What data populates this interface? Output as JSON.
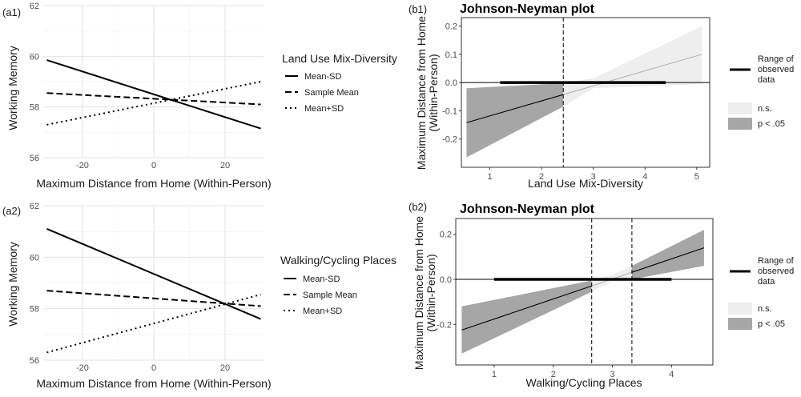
{
  "chart_data": [
    {
      "panel": "(a1)",
      "type": "line",
      "xlabel": "Maximum Distance from Home (Within-Person)",
      "ylabel": "Working Memory",
      "xlim": [
        -31,
        31
      ],
      "ylim": [
        56,
        62
      ],
      "xticks": [
        -20,
        0,
        20
      ],
      "yticks": [
        56,
        58,
        60,
        62
      ],
      "legend_title": "Land Use Mix-Diversity",
      "series": [
        {
          "name": "Mean-SD",
          "x": [
            -30,
            30
          ],
          "y": [
            59.85,
            57.15
          ]
        },
        {
          "name": "Sample Mean",
          "x": [
            -30,
            30
          ],
          "y": [
            58.55,
            58.1
          ]
        },
        {
          "name": "Mean+SD",
          "x": [
            -30,
            30
          ],
          "y": [
            57.3,
            59.0
          ]
        }
      ]
    },
    {
      "panel": "(a2)",
      "type": "line",
      "xlabel": "Maximum Distance from Home (Within-Person)",
      "ylabel": "Working Memory",
      "xlim": [
        -31,
        31
      ],
      "ylim": [
        56,
        62
      ],
      "xticks": [
        -20,
        0,
        20
      ],
      "yticks": [
        56,
        58,
        60,
        62
      ],
      "legend_title": "Walking/Cycling Places",
      "series": [
        {
          "name": "Mean-SD",
          "x": [
            -30,
            30
          ],
          "y": [
            61.1,
            57.6
          ]
        },
        {
          "name": "Sample Mean",
          "x": [
            -30,
            30
          ],
          "y": [
            58.7,
            58.1
          ]
        },
        {
          "name": "Mean+SD",
          "x": [
            -30,
            30
          ],
          "y": [
            56.3,
            58.55
          ]
        }
      ]
    },
    {
      "panel": "(b1)",
      "type": "line",
      "title": "Johnson-Neyman plot",
      "xlabel": "Land Use Mix-Diversity",
      "ylabel": "Maximum Distance from Home (Within-Person)",
      "xlim": [
        0.45,
        5.25
      ],
      "ylim": [
        -0.3,
        0.23
      ],
      "xticks": [
        1,
        2,
        3,
        4,
        5
      ],
      "yticks": [
        -0.2,
        -0.1,
        0.0,
        0.1,
        0.2
      ],
      "x": [
        0.55,
        5.1
      ],
      "y": [
        -0.142,
        0.1
      ],
      "ci_x": [
        0.55,
        2.42,
        3.0,
        5.1
      ],
      "ci_lower": [
        -0.265,
        -0.085,
        -0.02,
        -0.005
      ],
      "ci_upper": [
        -0.02,
        -0.002,
        0.015,
        0.2
      ],
      "significance_bounds": [
        2.42
      ],
      "observed_range": [
        1.2,
        4.4
      ],
      "legend": [
        "Range of observed data",
        "n.s.",
        "p < .05"
      ],
      "colors": {
        "significant": "#a6a6a6",
        "ns": "#eeeeee"
      }
    },
    {
      "panel": "(b2)",
      "type": "line",
      "title": "Johnson-Neyman plot",
      "xlabel": "Walking/Cycling Places",
      "ylabel": "Maximum Distance from Home (Within-Person)",
      "xlim": [
        0.35,
        4.7
      ],
      "ylim": [
        -0.38,
        0.27
      ],
      "xticks": [
        1,
        2,
        3,
        4
      ],
      "yticks": [
        -0.2,
        0.0,
        0.2
      ],
      "x": [
        0.45,
        4.55
      ],
      "y": [
        -0.225,
        0.14
      ],
      "ci_x": [
        0.45,
        2.65,
        3.0,
        3.33,
        4.55
      ],
      "ci_lower": [
        -0.33,
        -0.055,
        -0.01,
        0.0,
        0.06
      ],
      "ci_upper": [
        -0.12,
        -0.005,
        0.02,
        0.06,
        0.22
      ],
      "significance_bounds": [
        2.65,
        3.33
      ],
      "observed_range": [
        1.0,
        4.0
      ],
      "legend": [
        "Range of observed data",
        "n.s.",
        "p < .05"
      ],
      "colors": {
        "significant": "#a6a6a6",
        "ns": "#eeeeee"
      }
    }
  ]
}
